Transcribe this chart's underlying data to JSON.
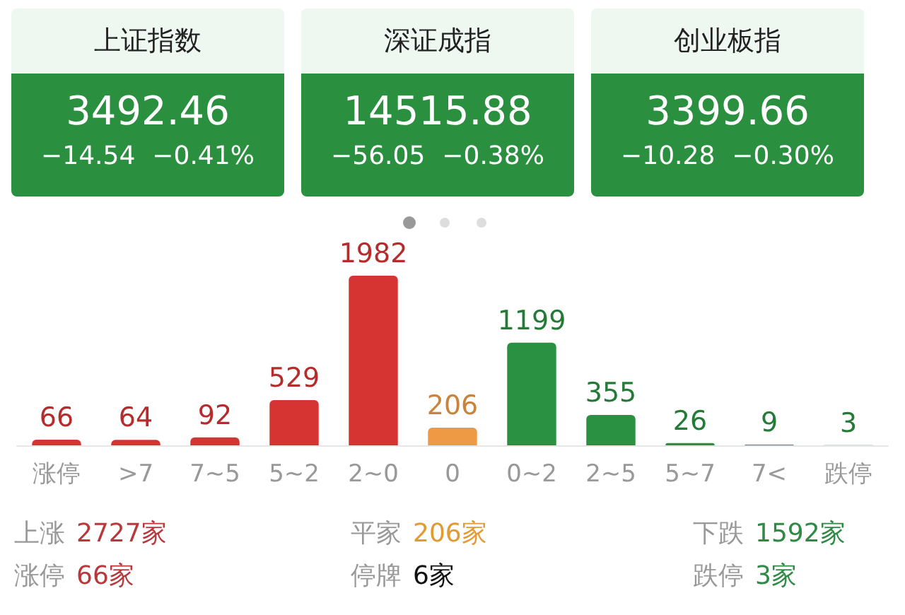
{
  "chart_data": {
    "type": "bar",
    "categories": [
      "涨停",
      ">7",
      "7~5",
      "5~2",
      "2~0",
      "0",
      "0~2",
      "2~5",
      "5~7",
      "7<",
      "跌停"
    ],
    "values": [
      66,
      64,
      92,
      529,
      1982,
      206,
      1199,
      355,
      26,
      9,
      3
    ],
    "colors": [
      "#d63333",
      "#d63333",
      "#d63333",
      "#d63333",
      "#d63333",
      "#ee9a45",
      "#2a9142",
      "#2a9142",
      "#2a9142",
      "#2a9142",
      "#2a9142"
    ],
    "data_labels": true,
    "annotations": [
      "上证指数",
      "3492.46",
      "−14.54",
      "−0.41%",
      "深证成指",
      "14515.88",
      "−56.05",
      "−0.38%",
      "创业板指",
      "3399.66",
      "−10.28",
      "−0.30%",
      "上涨",
      "2727家",
      "平家",
      "206家",
      "下跌",
      "1592家",
      "涨停",
      "66家",
      "停牌",
      "6家",
      "跌停",
      "3家"
    ]
  }
}
